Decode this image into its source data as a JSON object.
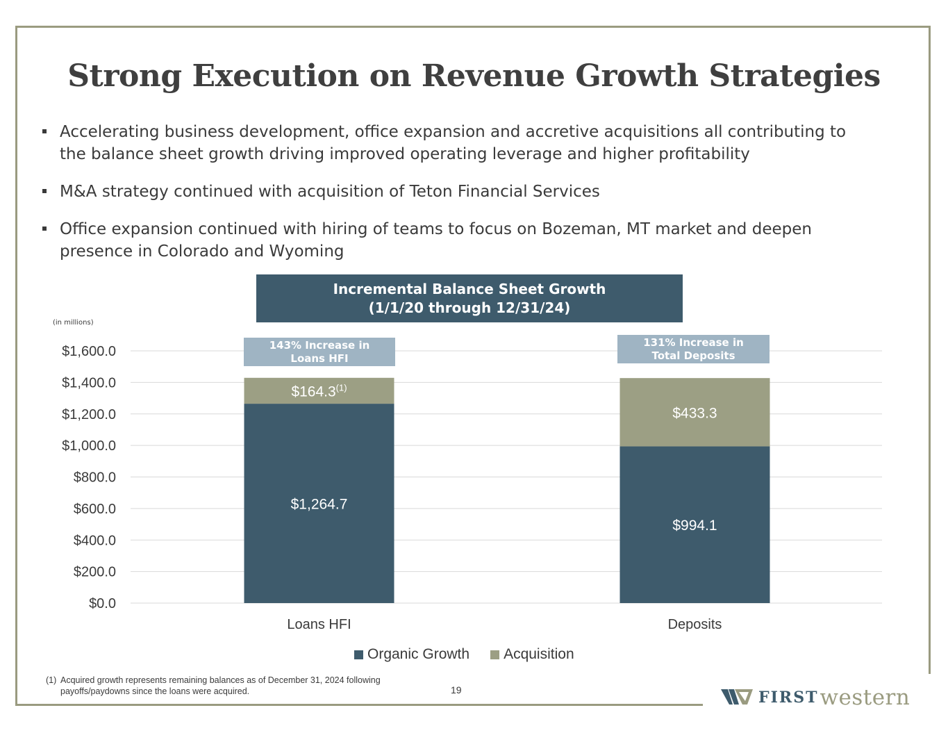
{
  "page": {
    "title": "Strong Execution on Revenue Growth Strategies",
    "bullets": [
      "Accelerating business development, office expansion and accretive acquisitions all contributing to the balance sheet growth driving improved operating leverage and higher profitability",
      "M&A strategy continued with acquisition of Teton Financial Services",
      "Office expansion continued with hiring of teams to focus on Bozeman, MT market and deepen presence in Colorado and Wyoming"
    ],
    "chart_header_line1": "Incremental Balance Sheet Growth",
    "chart_header_line2": "(1/1/20 through 12/31/24)",
    "units_note": "(in millions)",
    "callouts": [
      {
        "line1": "143% Increase in",
        "line2": "Loans HFI"
      },
      {
        "line1": "131% Increase in",
        "line2": "Total Deposits"
      }
    ],
    "footnote_num": "(1)",
    "footnote_text": "Acquired growth represents remaining balances as of December 31, 2024 following payoffs/paydowns since the loans were acquired.",
    "page_number": "19",
    "logo_first": "FIRST",
    "logo_western": "western"
  },
  "chart_data": {
    "type": "bar",
    "stacked": true,
    "categories": [
      "Loans HFI",
      "Deposits"
    ],
    "series": [
      {
        "name": "Organic Growth",
        "values": [
          1264.7,
          994.1
        ],
        "color": "#3e5b6c",
        "labels": [
          "$1,264.7",
          "$994.1"
        ]
      },
      {
        "name": "Acquisition",
        "values": [
          164.3,
          433.3
        ],
        "color": "#9c9f84",
        "labels": [
          "$164.3",
          "$433.3"
        ]
      }
    ],
    "label_superscripts": {
      "Acquisition": [
        "(1)",
        ""
      ]
    },
    "ylim": [
      0,
      1600
    ],
    "yticks": [
      "$0.0",
      "$200.0",
      "$400.0",
      "$600.0",
      "$800.0",
      "$1,000.0",
      "$1,200.0",
      "$1,400.0",
      "$1,600.0"
    ],
    "ytick_values": [
      0,
      200,
      400,
      600,
      800,
      1000,
      1200,
      1400,
      1600
    ],
    "grid": true,
    "legend": "bottom"
  },
  "colors": {
    "navy": "#3e5b6c",
    "sage": "#9c9f84",
    "callout": "#9fb4c3"
  }
}
